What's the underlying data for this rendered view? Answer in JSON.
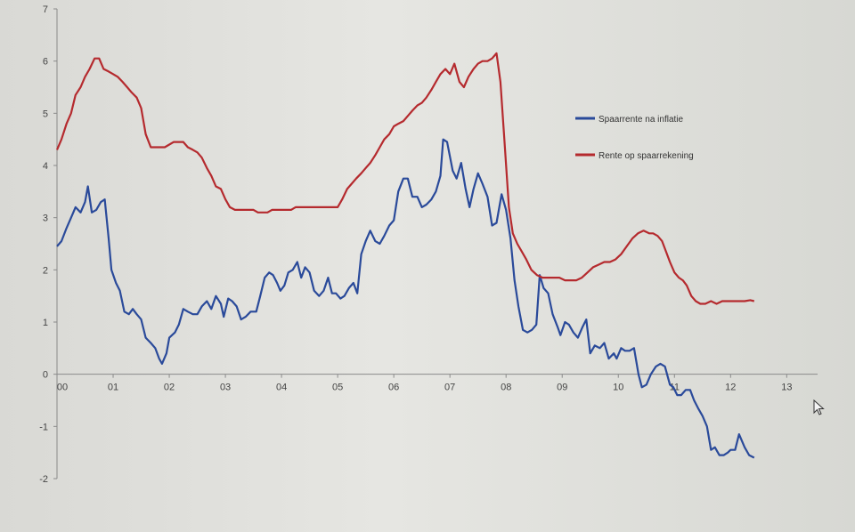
{
  "chart_data": {
    "type": "line",
    "title": "",
    "xlabel": "",
    "ylabel": "",
    "ylim": [
      -2,
      7
    ],
    "y_ticks": [
      "-2",
      "-1",
      "0",
      "1",
      "2",
      "3",
      "4",
      "5",
      "6",
      "7"
    ],
    "x_ticks": [
      "00",
      "01",
      "02",
      "03",
      "04",
      "05",
      "06",
      "07",
      "08",
      "09",
      "10",
      "11",
      "12",
      "13"
    ],
    "xlim": [
      0,
      13.55
    ],
    "grid": false,
    "legend_position": "right",
    "series": [
      {
        "name": "Spaarrente na inflatie",
        "color": "#2a4a9a",
        "points": [
          [
            0.0,
            2.45
          ],
          [
            0.08,
            2.55
          ],
          [
            0.17,
            2.8
          ],
          [
            0.25,
            3.0
          ],
          [
            0.33,
            3.2
          ],
          [
            0.42,
            3.1
          ],
          [
            0.5,
            3.3
          ],
          [
            0.55,
            3.6
          ],
          [
            0.62,
            3.1
          ],
          [
            0.7,
            3.15
          ],
          [
            0.78,
            3.3
          ],
          [
            0.85,
            3.35
          ],
          [
            0.92,
            2.6
          ],
          [
            0.97,
            2.0
          ],
          [
            1.05,
            1.75
          ],
          [
            1.12,
            1.6
          ],
          [
            1.2,
            1.2
          ],
          [
            1.28,
            1.15
          ],
          [
            1.35,
            1.25
          ],
          [
            1.42,
            1.15
          ],
          [
            1.5,
            1.05
          ],
          [
            1.58,
            0.7
          ],
          [
            1.67,
            0.6
          ],
          [
            1.75,
            0.5
          ],
          [
            1.82,
            0.3
          ],
          [
            1.87,
            0.2
          ],
          [
            1.95,
            0.4
          ],
          [
            2.0,
            0.7
          ],
          [
            2.1,
            0.8
          ],
          [
            2.17,
            0.95
          ],
          [
            2.25,
            1.25
          ],
          [
            2.33,
            1.2
          ],
          [
            2.42,
            1.15
          ],
          [
            2.5,
            1.15
          ],
          [
            2.58,
            1.3
          ],
          [
            2.67,
            1.4
          ],
          [
            2.75,
            1.25
          ],
          [
            2.83,
            1.5
          ],
          [
            2.92,
            1.35
          ],
          [
            2.97,
            1.1
          ],
          [
            3.05,
            1.45
          ],
          [
            3.12,
            1.4
          ],
          [
            3.2,
            1.3
          ],
          [
            3.28,
            1.05
          ],
          [
            3.36,
            1.1
          ],
          [
            3.45,
            1.2
          ],
          [
            3.55,
            1.2
          ],
          [
            3.62,
            1.5
          ],
          [
            3.7,
            1.85
          ],
          [
            3.78,
            1.95
          ],
          [
            3.85,
            1.9
          ],
          [
            3.92,
            1.75
          ],
          [
            3.98,
            1.6
          ],
          [
            4.05,
            1.7
          ],
          [
            4.12,
            1.95
          ],
          [
            4.2,
            2.0
          ],
          [
            4.28,
            2.15
          ],
          [
            4.35,
            1.85
          ],
          [
            4.42,
            2.05
          ],
          [
            4.5,
            1.95
          ],
          [
            4.58,
            1.6
          ],
          [
            4.67,
            1.5
          ],
          [
            4.75,
            1.6
          ],
          [
            4.83,
            1.85
          ],
          [
            4.9,
            1.55
          ],
          [
            4.97,
            1.55
          ],
          [
            5.05,
            1.45
          ],
          [
            5.12,
            1.5
          ],
          [
            5.2,
            1.65
          ],
          [
            5.28,
            1.75
          ],
          [
            5.35,
            1.55
          ],
          [
            5.42,
            2.3
          ],
          [
            5.5,
            2.55
          ],
          [
            5.58,
            2.75
          ],
          [
            5.67,
            2.55
          ],
          [
            5.75,
            2.5
          ],
          [
            5.83,
            2.65
          ],
          [
            5.92,
            2.85
          ],
          [
            6.0,
            2.95
          ],
          [
            6.08,
            3.5
          ],
          [
            6.17,
            3.75
          ],
          [
            6.25,
            3.75
          ],
          [
            6.33,
            3.4
          ],
          [
            6.42,
            3.4
          ],
          [
            6.5,
            3.2
          ],
          [
            6.58,
            3.25
          ],
          [
            6.67,
            3.35
          ],
          [
            6.75,
            3.5
          ],
          [
            6.83,
            3.8
          ],
          [
            6.88,
            4.5
          ],
          [
            6.95,
            4.45
          ],
          [
            7.05,
            3.9
          ],
          [
            7.12,
            3.75
          ],
          [
            7.2,
            4.05
          ],
          [
            7.28,
            3.55
          ],
          [
            7.35,
            3.2
          ],
          [
            7.42,
            3.55
          ],
          [
            7.5,
            3.85
          ],
          [
            7.58,
            3.65
          ],
          [
            7.67,
            3.4
          ],
          [
            7.75,
            2.85
          ],
          [
            7.83,
            2.9
          ],
          [
            7.92,
            3.45
          ],
          [
            8.0,
            3.15
          ],
          [
            8.08,
            2.6
          ],
          [
            8.15,
            1.8
          ],
          [
            8.22,
            1.3
          ],
          [
            8.3,
            0.85
          ],
          [
            8.38,
            0.8
          ],
          [
            8.46,
            0.85
          ],
          [
            8.54,
            0.95
          ],
          [
            8.6,
            1.9
          ],
          [
            8.67,
            1.65
          ],
          [
            8.75,
            1.55
          ],
          [
            8.83,
            1.15
          ],
          [
            8.92,
            0.9
          ],
          [
            8.97,
            0.75
          ],
          [
            9.05,
            1.0
          ],
          [
            9.12,
            0.95
          ],
          [
            9.2,
            0.8
          ],
          [
            9.28,
            0.7
          ],
          [
            9.36,
            0.9
          ],
          [
            9.43,
            1.05
          ],
          [
            9.5,
            0.4
          ],
          [
            9.58,
            0.55
          ],
          [
            9.67,
            0.5
          ],
          [
            9.75,
            0.6
          ],
          [
            9.83,
            0.3
          ],
          [
            9.92,
            0.4
          ],
          [
            9.97,
            0.3
          ],
          [
            10.05,
            0.5
          ],
          [
            10.12,
            0.45
          ],
          [
            10.2,
            0.45
          ],
          [
            10.28,
            0.5
          ],
          [
            10.36,
            0.0
          ],
          [
            10.42,
            -0.25
          ],
          [
            10.5,
            -0.2
          ],
          [
            10.58,
            0.0
          ],
          [
            10.67,
            0.15
          ],
          [
            10.75,
            0.2
          ],
          [
            10.83,
            0.15
          ],
          [
            10.92,
            -0.2
          ],
          [
            10.98,
            -0.25
          ],
          [
            11.05,
            -0.4
          ],
          [
            11.12,
            -0.4
          ],
          [
            11.2,
            -0.3
          ],
          [
            11.28,
            -0.3
          ],
          [
            11.35,
            -0.5
          ],
          [
            11.42,
            -0.65
          ],
          [
            11.5,
            -0.8
          ],
          [
            11.58,
            -1.0
          ],
          [
            11.65,
            -1.45
          ],
          [
            11.72,
            -1.4
          ],
          [
            11.8,
            -1.55
          ],
          [
            11.88,
            -1.55
          ],
          [
            11.95,
            -1.5
          ],
          [
            12.0,
            -1.45
          ],
          [
            12.08,
            -1.45
          ],
          [
            12.15,
            -1.15
          ],
          [
            12.25,
            -1.4
          ],
          [
            12.33,
            -1.55
          ],
          [
            12.42,
            -1.6
          ]
        ]
      },
      {
        "name": "Rente op spaarrekening",
        "color": "#b52a2e",
        "points": [
          [
            0.0,
            4.3
          ],
          [
            0.08,
            4.5
          ],
          [
            0.17,
            4.8
          ],
          [
            0.25,
            5.0
          ],
          [
            0.33,
            5.35
          ],
          [
            0.42,
            5.5
          ],
          [
            0.5,
            5.7
          ],
          [
            0.58,
            5.85
          ],
          [
            0.67,
            6.05
          ],
          [
            0.75,
            6.05
          ],
          [
            0.83,
            5.85
          ],
          [
            0.92,
            5.8
          ],
          [
            1.0,
            5.75
          ],
          [
            1.08,
            5.7
          ],
          [
            1.17,
            5.6
          ],
          [
            1.25,
            5.5
          ],
          [
            1.33,
            5.4
          ],
          [
            1.42,
            5.3
          ],
          [
            1.5,
            5.1
          ],
          [
            1.58,
            4.6
          ],
          [
            1.67,
            4.35
          ],
          [
            1.75,
            4.35
          ],
          [
            1.83,
            4.35
          ],
          [
            1.92,
            4.35
          ],
          [
            2.0,
            4.4
          ],
          [
            2.08,
            4.45
          ],
          [
            2.17,
            4.45
          ],
          [
            2.25,
            4.45
          ],
          [
            2.33,
            4.35
          ],
          [
            2.42,
            4.3
          ],
          [
            2.5,
            4.25
          ],
          [
            2.58,
            4.15
          ],
          [
            2.67,
            3.95
          ],
          [
            2.75,
            3.8
          ],
          [
            2.83,
            3.6
          ],
          [
            2.92,
            3.55
          ],
          [
            3.0,
            3.35
          ],
          [
            3.08,
            3.2
          ],
          [
            3.17,
            3.15
          ],
          [
            3.25,
            3.15
          ],
          [
            3.33,
            3.15
          ],
          [
            3.42,
            3.15
          ],
          [
            3.5,
            3.15
          ],
          [
            3.58,
            3.1
          ],
          [
            3.67,
            3.1
          ],
          [
            3.75,
            3.1
          ],
          [
            3.83,
            3.15
          ],
          [
            3.92,
            3.15
          ],
          [
            4.0,
            3.15
          ],
          [
            4.08,
            3.15
          ],
          [
            4.17,
            3.15
          ],
          [
            4.25,
            3.2
          ],
          [
            4.33,
            3.2
          ],
          [
            4.42,
            3.2
          ],
          [
            4.5,
            3.2
          ],
          [
            4.58,
            3.2
          ],
          [
            4.67,
            3.2
          ],
          [
            4.75,
            3.2
          ],
          [
            4.83,
            3.2
          ],
          [
            4.92,
            3.2
          ],
          [
            5.0,
            3.2
          ],
          [
            5.08,
            3.35
          ],
          [
            5.17,
            3.55
          ],
          [
            5.25,
            3.65
          ],
          [
            5.33,
            3.75
          ],
          [
            5.42,
            3.85
          ],
          [
            5.5,
            3.95
          ],
          [
            5.58,
            4.05
          ],
          [
            5.67,
            4.2
          ],
          [
            5.75,
            4.35
          ],
          [
            5.83,
            4.5
          ],
          [
            5.92,
            4.6
          ],
          [
            6.0,
            4.75
          ],
          [
            6.08,
            4.8
          ],
          [
            6.17,
            4.85
          ],
          [
            6.25,
            4.95
          ],
          [
            6.33,
            5.05
          ],
          [
            6.42,
            5.15
          ],
          [
            6.5,
            5.2
          ],
          [
            6.58,
            5.3
          ],
          [
            6.67,
            5.45
          ],
          [
            6.75,
            5.6
          ],
          [
            6.83,
            5.75
          ],
          [
            6.92,
            5.85
          ],
          [
            7.0,
            5.75
          ],
          [
            7.08,
            5.95
          ],
          [
            7.17,
            5.6
          ],
          [
            7.25,
            5.5
          ],
          [
            7.33,
            5.7
          ],
          [
            7.42,
            5.85
          ],
          [
            7.5,
            5.95
          ],
          [
            7.58,
            6.0
          ],
          [
            7.67,
            6.0
          ],
          [
            7.75,
            6.05
          ],
          [
            7.83,
            6.15
          ],
          [
            7.9,
            5.6
          ],
          [
            7.97,
            4.5
          ],
          [
            8.05,
            3.2
          ],
          [
            8.12,
            2.7
          ],
          [
            8.2,
            2.5
          ],
          [
            8.28,
            2.35
          ],
          [
            8.36,
            2.2
          ],
          [
            8.45,
            2.0
          ],
          [
            8.55,
            1.9
          ],
          [
            8.65,
            1.85
          ],
          [
            8.75,
            1.85
          ],
          [
            8.85,
            1.85
          ],
          [
            8.95,
            1.85
          ],
          [
            9.05,
            1.8
          ],
          [
            9.15,
            1.8
          ],
          [
            9.25,
            1.8
          ],
          [
            9.35,
            1.85
          ],
          [
            9.45,
            1.95
          ],
          [
            9.55,
            2.05
          ],
          [
            9.65,
            2.1
          ],
          [
            9.75,
            2.15
          ],
          [
            9.85,
            2.15
          ],
          [
            9.95,
            2.2
          ],
          [
            10.05,
            2.3
          ],
          [
            10.15,
            2.45
          ],
          [
            10.25,
            2.6
          ],
          [
            10.35,
            2.7
          ],
          [
            10.45,
            2.75
          ],
          [
            10.55,
            2.7
          ],
          [
            10.62,
            2.7
          ],
          [
            10.7,
            2.65
          ],
          [
            10.78,
            2.55
          ],
          [
            10.85,
            2.35
          ],
          [
            10.92,
            2.15
          ],
          [
            11.0,
            1.95
          ],
          [
            11.08,
            1.85
          ],
          [
            11.15,
            1.8
          ],
          [
            11.22,
            1.7
          ],
          [
            11.3,
            1.5
          ],
          [
            11.38,
            1.4
          ],
          [
            11.46,
            1.35
          ],
          [
            11.55,
            1.35
          ],
          [
            11.65,
            1.4
          ],
          [
            11.75,
            1.35
          ],
          [
            11.85,
            1.4
          ],
          [
            11.95,
            1.4
          ],
          [
            12.05,
            1.4
          ],
          [
            12.15,
            1.4
          ],
          [
            12.25,
            1.4
          ],
          [
            12.35,
            1.42
          ],
          [
            12.42,
            1.4
          ]
        ]
      }
    ]
  }
}
